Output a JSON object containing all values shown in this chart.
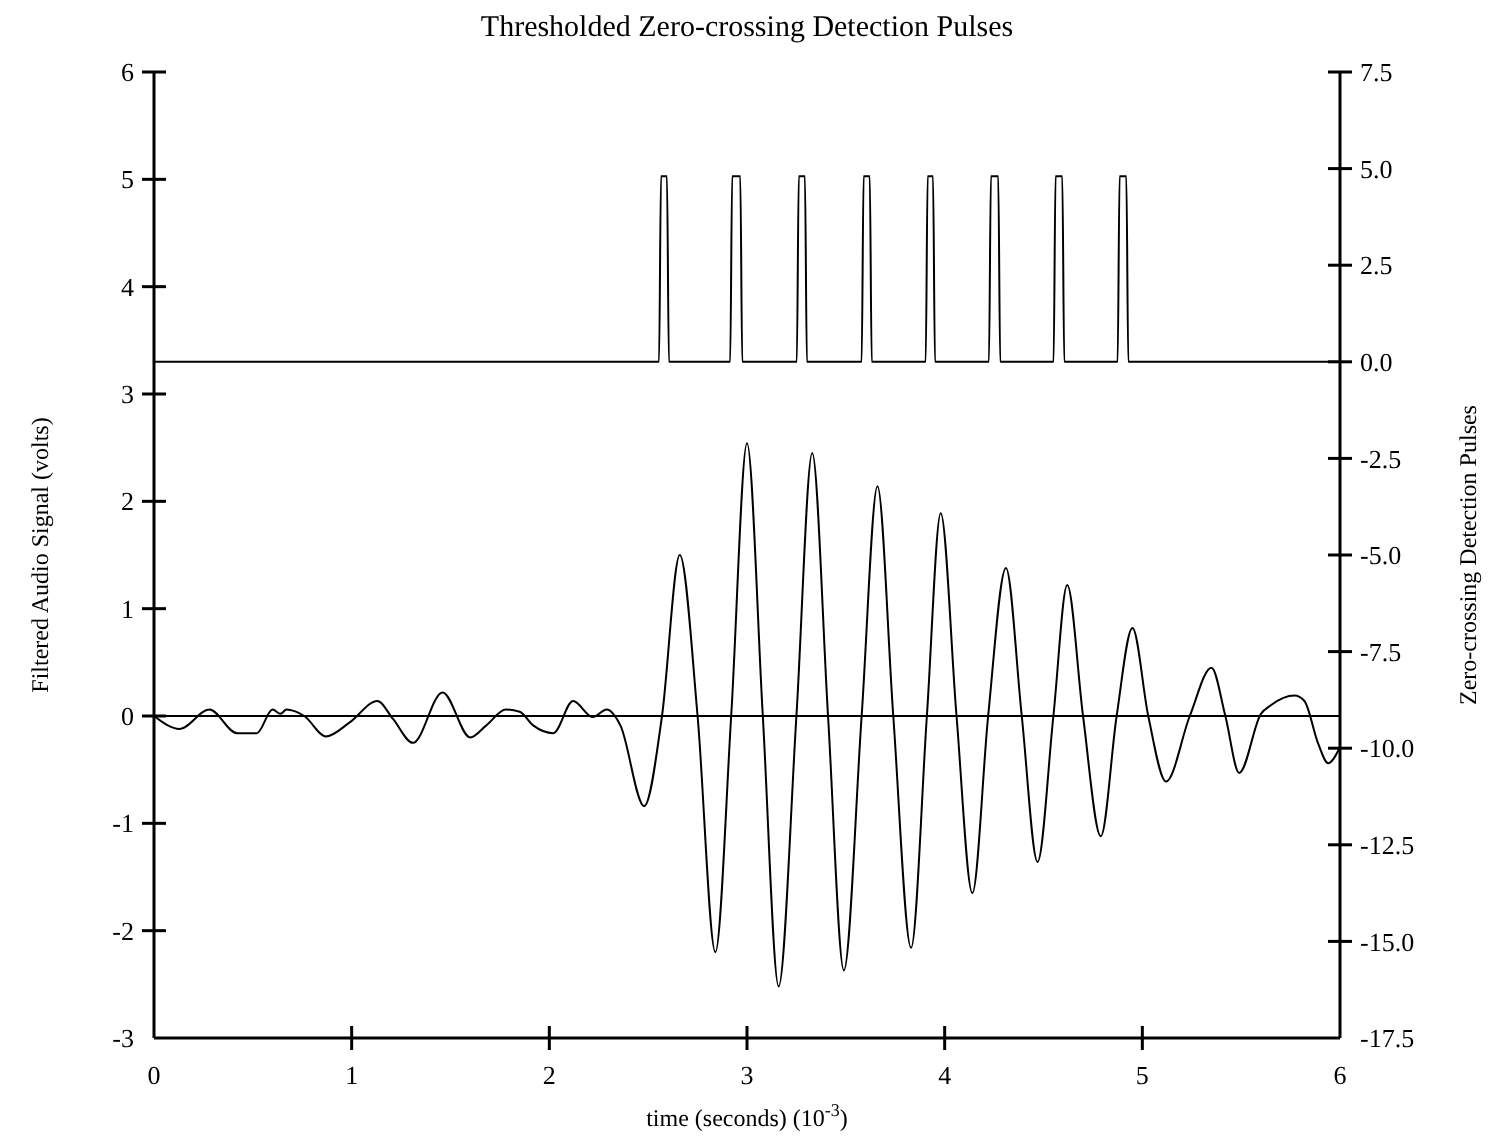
{
  "chart_data": {
    "type": "line",
    "title": "Thresholded Zero-crossing Detection Pulses",
    "xlabel": "time (seconds)  (10$^{-3}$)",
    "ylabel": "Filtered Audio Signal (volts)",
    "y2label": "Zero-crossing Detection Pulses",
    "xlim": [
      0,
      6
    ],
    "xticks": [
      0,
      1,
      2,
      3,
      4,
      5,
      6
    ],
    "ylim": [
      -3,
      6
    ],
    "yticks": [
      -3,
      -2,
      -1,
      0,
      1,
      2,
      3,
      4,
      5,
      6
    ],
    "y2lim": [
      -17.5,
      7.5
    ],
    "y2ticks": [
      {
        "value": -17.5,
        "label": "-17.5"
      },
      {
        "value": -15,
        "label": "-15.0"
      },
      {
        "value": -12.5,
        "label": "-12.5"
      },
      {
        "value": -10,
        "label": "-10.0"
      },
      {
        "value": -7.5,
        "label": "-7.5"
      },
      {
        "value": -5,
        "label": "-5.0"
      },
      {
        "value": -2.5,
        "label": "-2.5"
      },
      {
        "value": 0,
        "label": "0.0"
      },
      {
        "value": 2.5,
        "label": "2.5"
      },
      {
        "value": 5,
        "label": "5.0"
      },
      {
        "value": 7.5,
        "label": "7.5"
      }
    ],
    "grid": false,
    "marker": "none",
    "line_style": "solid",
    "ref_lines": [
      {
        "axis": "y",
        "value": 0,
        "color": "#000000"
      }
    ],
    "series": [
      {
        "color": "#000000",
        "x": [
          0,
          0.13,
          0.28,
          0.42,
          0.52,
          0.6,
          0.64,
          0.67,
          0.76,
          0.87,
          0.99,
          1.13,
          1.21,
          1.31,
          1.46,
          1.6,
          1.68,
          1.78,
          1.85,
          1.92,
          2.02,
          2.12,
          2.22,
          2.29,
          2.36,
          2.48,
          2.57,
          2.66,
          2.75,
          2.84,
          2.92,
          3.0,
          3.08,
          3.16,
          3.25,
          3.33,
          3.41,
          3.49,
          3.58,
          3.66,
          3.74,
          3.83,
          3.91,
          3.98,
          4.06,
          4.14,
          4.22,
          4.31,
          4.39,
          4.47,
          4.55,
          4.62,
          4.7,
          4.79,
          4.87,
          4.95,
          5.03,
          5.12,
          5.24,
          5.35,
          5.42,
          5.49,
          5.6,
          5.65,
          5.77,
          5.82,
          5.89,
          5.94,
          6.0
        ],
        "values": [
          0,
          -0.12,
          0.06,
          -0.16,
          -0.16,
          0.06,
          0.02,
          0.06,
          0,
          -0.19,
          -0.06,
          0.14,
          -0.03,
          -0.25,
          0.22,
          -0.2,
          -0.09,
          0.06,
          0.04,
          -0.09,
          -0.16,
          0.14,
          -0.01,
          0.06,
          -0.09,
          -0.84,
          0,
          1.5,
          0,
          -2.2,
          0,
          2.54,
          0,
          -2.52,
          0,
          2.45,
          0,
          -2.37,
          0,
          2.14,
          0,
          -2.16,
          0,
          1.89,
          0,
          -1.65,
          0,
          1.38,
          0,
          -1.36,
          0,
          1.22,
          0,
          -1.12,
          0,
          0.82,
          0,
          -0.61,
          0,
          0.45,
          0,
          -0.53,
          0.02,
          0.1,
          0.19,
          0.14,
          -0.26,
          -0.44,
          -0.29
        ]
      },
      {
        "color": "#000000",
        "axis": "y2",
        "x": [
          0,
          2.555,
          2.565,
          2.595,
          2.605,
          2.915,
          2.925,
          2.966,
          2.976,
          3.252,
          3.262,
          3.293,
          3.303,
          3.58,
          3.59,
          3.621,
          3.631,
          3.904,
          3.914,
          3.941,
          3.951,
          4.224,
          4.234,
          4.271,
          4.281,
          4.551,
          4.561,
          4.595,
          4.605,
          4.875,
          4.885,
          4.919,
          4.929,
          6.0
        ],
        "values": [
          0,
          0,
          4.8,
          4.8,
          0,
          0,
          4.8,
          4.8,
          0,
          0,
          4.8,
          4.8,
          0,
          0,
          4.8,
          4.8,
          0,
          0,
          4.8,
          4.8,
          0,
          0,
          4.8,
          4.8,
          0,
          0,
          4.8,
          4.8,
          0,
          0,
          4.8,
          4.8,
          0,
          0
        ]
      }
    ]
  }
}
